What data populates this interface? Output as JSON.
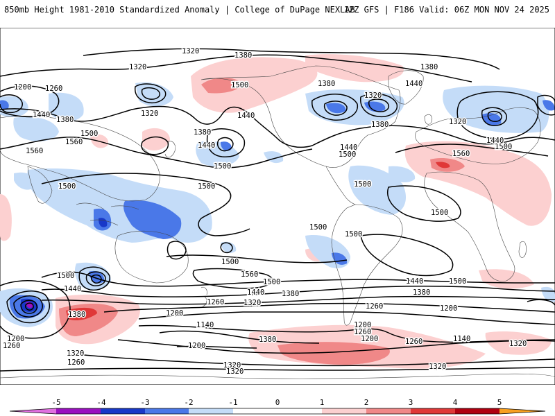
{
  "header": {
    "title": "850mb Height 1981-2010 Standardized Anomaly | College of DuPage NEXLAB",
    "run_info": "12Z GFS | F186 Valid: 06Z MON NOV 24 2025"
  },
  "colors": {
    "neg5": "#e070e0",
    "neg4": "#9a10c0",
    "neg3": "#1838c8",
    "neg2": "#4a78e8",
    "neg1": "#c4dcf8",
    "zero": "#ffffff",
    "pos1": "#fcd0d0",
    "pos2": "#f08888",
    "pos3": "#e03838",
    "pos4": "#b00010",
    "pos5": "#f8a020"
  },
  "contour_labels": [
    {
      "id": "c1",
      "text": "1320"
    },
    {
      "id": "c2",
      "text": "1380"
    },
    {
      "id": "c3",
      "text": "1320"
    },
    {
      "id": "c4",
      "text": "1200"
    },
    {
      "id": "c5",
      "text": "1260"
    },
    {
      "id": "c6",
      "text": "1500"
    },
    {
      "id": "c7",
      "text": "1440"
    },
    {
      "id": "c8",
      "text": "1380"
    },
    {
      "id": "c9",
      "text": "1380"
    },
    {
      "id": "c10",
      "text": "1320"
    },
    {
      "id": "c11",
      "text": "1380"
    },
    {
      "id": "c12",
      "text": "1440"
    },
    {
      "id": "c13",
      "text": "1320"
    },
    {
      "id": "c14",
      "text": "1440"
    },
    {
      "id": "c15",
      "text": "1380"
    },
    {
      "id": "c16",
      "text": "1500"
    },
    {
      "id": "c17",
      "text": "1440"
    },
    {
      "id": "c18",
      "text": "1320"
    },
    {
      "id": "c19",
      "text": "1440"
    },
    {
      "id": "c20",
      "text": "1380"
    },
    {
      "id": "c21",
      "text": "1500"
    },
    {
      "id": "c22",
      "text": "1560"
    },
    {
      "id": "c23",
      "text": "1560"
    },
    {
      "id": "c24",
      "text": "1500"
    },
    {
      "id": "c25",
      "text": "1440"
    },
    {
      "id": "c26",
      "text": "1560"
    },
    {
      "id": "c27",
      "text": "1500"
    },
    {
      "id": "c28",
      "text": "1500"
    },
    {
      "id": "c29",
      "text": "1500"
    },
    {
      "id": "c30",
      "text": "1500"
    },
    {
      "id": "c31",
      "text": "1500"
    },
    {
      "id": "c32",
      "text": "1500"
    },
    {
      "id": "c33",
      "text": "1500"
    },
    {
      "id": "c34",
      "text": "1500"
    },
    {
      "id": "c35",
      "text": "1500"
    },
    {
      "id": "c36",
      "text": "1560"
    },
    {
      "id": "c37",
      "text": "1500"
    },
    {
      "id": "c38",
      "text": "1440"
    },
    {
      "id": "c39",
      "text": "1380"
    },
    {
      "id": "c40",
      "text": "1440"
    },
    {
      "id": "c41",
      "text": "1500"
    },
    {
      "id": "c42",
      "text": "1380"
    },
    {
      "id": "c43",
      "text": "1440"
    },
    {
      "id": "c44",
      "text": "1380"
    },
    {
      "id": "c45",
      "text": "1320"
    },
    {
      "id": "c46",
      "text": "1260"
    },
    {
      "id": "c47",
      "text": "1200"
    },
    {
      "id": "c48",
      "text": "1140"
    },
    {
      "id": "c49",
      "text": "1260"
    },
    {
      "id": "c50",
      "text": "1200"
    },
    {
      "id": "c51",
      "text": "1200"
    },
    {
      "id": "c52",
      "text": "1260"
    },
    {
      "id": "c53",
      "text": "1200"
    },
    {
      "id": "c54",
      "text": "1260"
    },
    {
      "id": "c55",
      "text": "1140"
    },
    {
      "id": "c56",
      "text": "1200"
    },
    {
      "id": "c57",
      "text": "1380"
    },
    {
      "id": "c58",
      "text": "1320"
    },
    {
      "id": "c59",
      "text": "1260"
    },
    {
      "id": "c60",
      "text": "1320"
    },
    {
      "id": "c61",
      "text": "1320"
    },
    {
      "id": "c62",
      "text": "1320"
    },
    {
      "id": "c63",
      "text": "1320"
    },
    {
      "id": "c64",
      "text": "1200"
    },
    {
      "id": "c65",
      "text": "1260"
    }
  ],
  "colorbar": {
    "ticks": [
      "-5",
      "-4",
      "-3",
      "-2",
      "-1",
      "0",
      "1",
      "2",
      "3",
      "4",
      "5"
    ]
  }
}
